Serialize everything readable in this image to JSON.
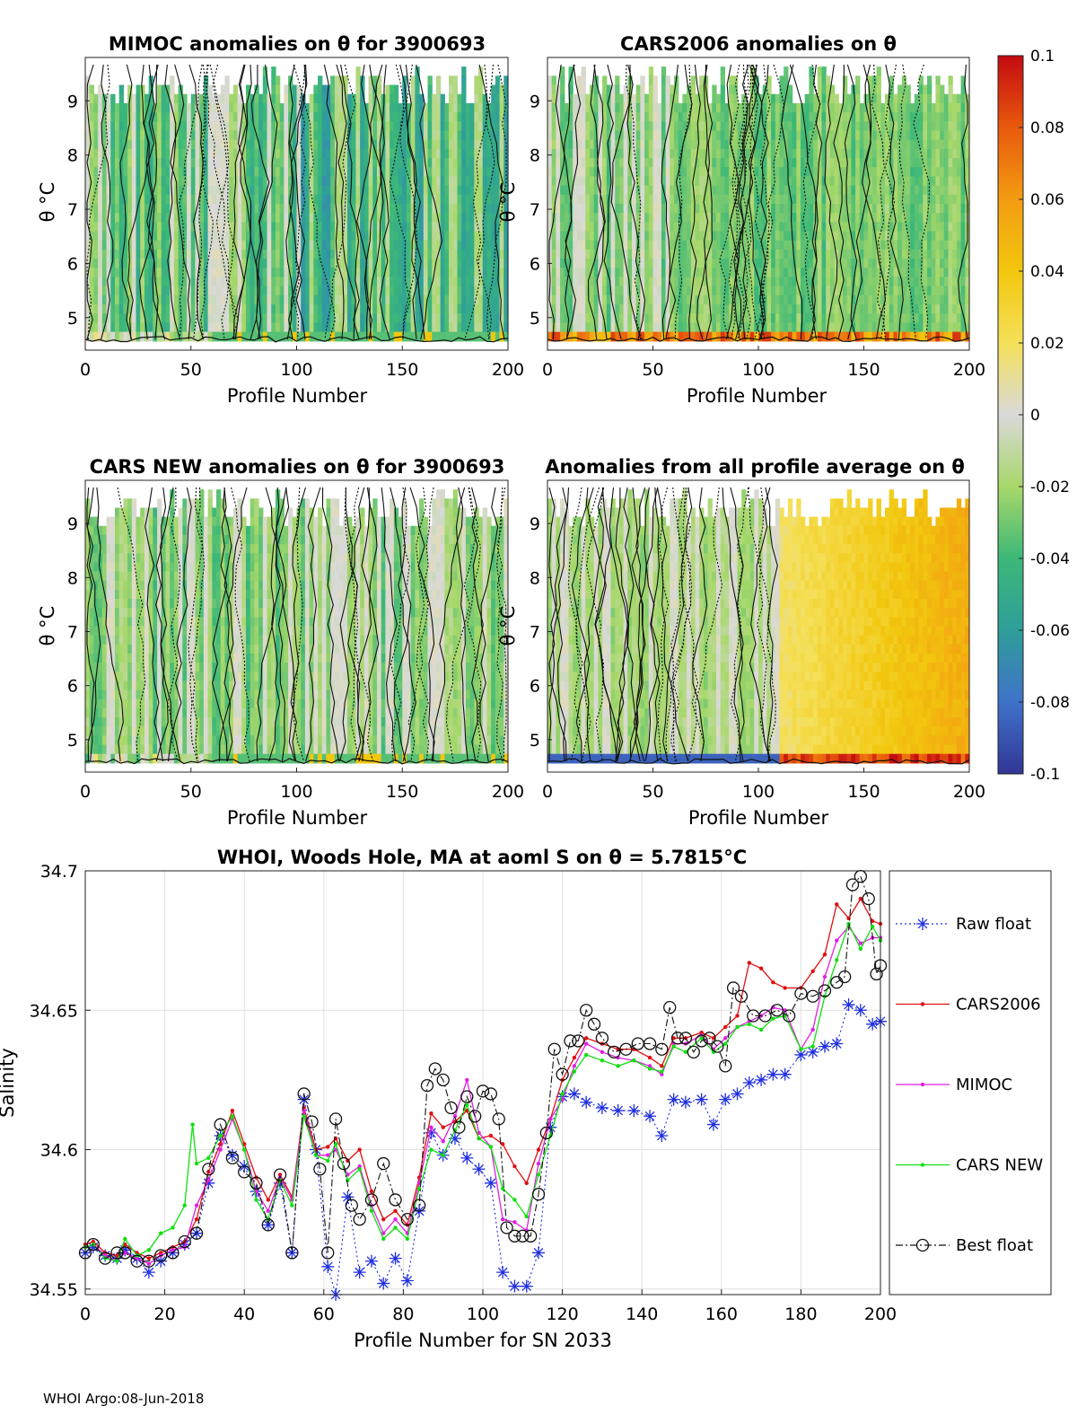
{
  "footer": "WHOI Argo:08-Jun-2018",
  "colorbar": {
    "ticks": [
      "0.1",
      "0.08",
      "0.06",
      "0.04",
      "0.02",
      "0",
      "-0.02",
      "-0.04",
      "-0.06",
      "-0.08",
      "-0.1"
    ],
    "range": [
      -0.1,
      0.1
    ],
    "colormap": [
      "#313695",
      "#3f72c9",
      "#2f9e9a",
      "#3cb878",
      "#a8d86a",
      "#d9d9d9",
      "#f5e05a",
      "#f2c70e",
      "#f39c12",
      "#e8590c",
      "#c40a12"
    ]
  },
  "heatmaps": [
    {
      "title": "MIMOC anomalies on θ  for 3900693",
      "xlabel": "Profile Number",
      "ylabel": "θ °C",
      "xticks": [
        "0",
        "50",
        "100",
        "150",
        "200"
      ],
      "yticks": [
        "9",
        "8",
        "7",
        "6",
        "5"
      ],
      "xlim": [
        0,
        200
      ],
      "ylim": [
        4.4,
        9.8
      ],
      "pattern": "mimoc"
    },
    {
      "title": "CARS2006 anomalies on θ",
      "xlabel": "Profile Number",
      "ylabel": "θ °C",
      "xticks": [
        "0",
        "50",
        "100",
        "150",
        "200"
      ],
      "yticks": [
        "9",
        "8",
        "7",
        "6",
        "5"
      ],
      "xlim": [
        0,
        200
      ],
      "ylim": [
        4.4,
        9.8
      ],
      "pattern": "cars2006"
    },
    {
      "title": "CARS NEW anomalies on θ for 3900693",
      "xlabel": "Profile Number",
      "ylabel": "θ °C",
      "xticks": [
        "0",
        "50",
        "100",
        "150",
        "200"
      ],
      "yticks": [
        "9",
        "8",
        "7",
        "6",
        "5"
      ],
      "xlim": [
        0,
        200
      ],
      "ylim": [
        4.4,
        9.8
      ],
      "pattern": "carsnew"
    },
    {
      "title": "Anomalies from all profile average on θ",
      "xlabel": "Profile Number",
      "ylabel": "θ °C",
      "xticks": [
        "0",
        "50",
        "100",
        "150",
        "200"
      ],
      "yticks": [
        "9",
        "8",
        "7",
        "6",
        "5"
      ],
      "xlim": [
        0,
        200
      ],
      "ylim": [
        4.4,
        9.8
      ],
      "pattern": "avg"
    }
  ],
  "chart_data": {
    "type": "line",
    "title": "WHOI, Woods Hole, MA at aoml S on θ = 5.7815°C",
    "xlabel": "Profile Number for SN 2033",
    "ylabel": "Salinity",
    "xlim": [
      0,
      200
    ],
    "ylim": [
      34.548,
      34.7
    ],
    "grid": true,
    "legend_position": "right-outside",
    "xticks": [
      "0",
      "20",
      "40",
      "60",
      "80",
      "100",
      "120",
      "140",
      "160",
      "180",
      "200"
    ],
    "yticks": [
      "34.7",
      "34.65",
      "34.6",
      "34.55"
    ],
    "series": [
      {
        "name": "Raw float",
        "color": "#1f2fe0",
        "marker": "star",
        "style": "dotted",
        "x": [
          0,
          2,
          5,
          8,
          10,
          13,
          16,
          19,
          22,
          25,
          28,
          31,
          34,
          37,
          40,
          43,
          46,
          49,
          52,
          55,
          58,
          61,
          63,
          66,
          69,
          72,
          75,
          78,
          81,
          84,
          87,
          90,
          93,
          96,
          99,
          102,
          105,
          108,
          111,
          114,
          117,
          120,
          123,
          126,
          130,
          134,
          138,
          142,
          145,
          148,
          151,
          155,
          158,
          161,
          164,
          167,
          170,
          173,
          176,
          180,
          183,
          186,
          189,
          192,
          195,
          198,
          200
        ],
        "values": [
          34.563,
          34.565,
          34.562,
          34.561,
          34.564,
          34.561,
          34.556,
          34.56,
          34.563,
          34.566,
          34.57,
          34.588,
          34.605,
          34.598,
          34.594,
          34.585,
          34.573,
          34.588,
          34.563,
          34.618,
          34.6,
          34.558,
          34.548,
          34.583,
          34.556,
          34.56,
          34.552,
          34.561,
          34.553,
          34.578,
          34.606,
          34.598,
          34.604,
          34.597,
          34.593,
          34.588,
          34.556,
          34.551,
          34.551,
          34.563,
          34.608,
          34.619,
          34.62,
          34.617,
          34.615,
          34.614,
          34.614,
          34.612,
          34.605,
          34.618,
          34.617,
          34.618,
          34.609,
          34.618,
          34.62,
          34.624,
          34.625,
          34.627,
          34.627,
          34.634,
          34.635,
          34.637,
          34.638,
          34.652,
          34.65,
          34.645,
          34.646
        ]
      },
      {
        "name": "CARS2006",
        "color": "#e01010",
        "marker": "dot",
        "style": "solid",
        "x": [
          0,
          2,
          5,
          8,
          10,
          13,
          16,
          19,
          22,
          25,
          28,
          31,
          34,
          37,
          40,
          43,
          46,
          49,
          52,
          55,
          58,
          61,
          63,
          66,
          69,
          72,
          75,
          78,
          81,
          84,
          87,
          90,
          93,
          96,
          99,
          102,
          105,
          108,
          111,
          114,
          117,
          120,
          123,
          126,
          130,
          134,
          138,
          142,
          145,
          148,
          151,
          155,
          158,
          161,
          164,
          167,
          170,
          173,
          176,
          180,
          183,
          186,
          189,
          192,
          195,
          198,
          200
        ],
        "values": [
          34.566,
          34.567,
          34.563,
          34.562,
          34.566,
          34.563,
          34.561,
          34.563,
          34.565,
          34.567,
          34.575,
          34.592,
          34.602,
          34.614,
          34.602,
          34.59,
          34.582,
          34.591,
          34.583,
          34.615,
          34.6,
          34.601,
          34.604,
          34.596,
          34.6,
          34.585,
          34.575,
          34.578,
          34.573,
          34.59,
          34.613,
          34.608,
          34.61,
          34.614,
          34.604,
          34.605,
          34.602,
          34.594,
          34.588,
          34.6,
          34.611,
          34.625,
          34.633,
          34.64,
          34.638,
          34.636,
          34.636,
          34.633,
          34.63,
          34.64,
          34.64,
          34.642,
          34.64,
          34.644,
          34.648,
          34.667,
          34.665,
          34.66,
          34.658,
          34.658,
          34.664,
          34.67,
          34.688,
          34.683,
          34.69,
          34.682,
          34.681
        ]
      },
      {
        "name": "MIMOC",
        "color": "#e020e0",
        "marker": "dot",
        "style": "solid",
        "x": [
          0,
          2,
          5,
          8,
          10,
          13,
          16,
          19,
          22,
          25,
          28,
          31,
          34,
          37,
          40,
          43,
          46,
          49,
          52,
          55,
          58,
          61,
          63,
          66,
          69,
          72,
          75,
          78,
          81,
          84,
          87,
          90,
          93,
          96,
          99,
          102,
          105,
          108,
          111,
          114,
          117,
          120,
          123,
          126,
          130,
          134,
          138,
          142,
          145,
          148,
          151,
          155,
          158,
          161,
          164,
          167,
          170,
          173,
          176,
          180,
          183,
          186,
          189,
          192,
          195,
          198,
          200
        ],
        "values": [
          34.565,
          34.566,
          34.562,
          34.56,
          34.563,
          34.561,
          34.559,
          34.562,
          34.564,
          34.565,
          34.58,
          34.589,
          34.6,
          34.611,
          34.6,
          34.585,
          34.578,
          34.59,
          34.582,
          34.614,
          34.598,
          34.598,
          34.6,
          34.591,
          34.594,
          34.58,
          34.57,
          34.575,
          34.57,
          34.588,
          34.608,
          34.603,
          34.612,
          34.625,
          34.606,
          34.601,
          34.575,
          34.574,
          34.571,
          34.595,
          34.611,
          34.618,
          34.63,
          34.638,
          34.635,
          34.633,
          34.632,
          34.63,
          34.627,
          34.638,
          34.638,
          34.641,
          34.636,
          34.64,
          34.644,
          34.646,
          34.648,
          34.651,
          34.65,
          34.636,
          34.643,
          34.662,
          34.675,
          34.68,
          34.674,
          34.676,
          34.676
        ]
      },
      {
        "name": "CARS NEW",
        "color": "#10e010",
        "marker": "dot",
        "style": "solid",
        "x": [
          0,
          2,
          5,
          8,
          10,
          13,
          16,
          19,
          22,
          25,
          27,
          28,
          31,
          34,
          37,
          40,
          43,
          46,
          49,
          52,
          55,
          58,
          61,
          63,
          66,
          69,
          72,
          75,
          78,
          81,
          84,
          87,
          90,
          93,
          96,
          99,
          102,
          105,
          108,
          111,
          114,
          117,
          120,
          123,
          126,
          130,
          134,
          138,
          142,
          145,
          148,
          151,
          155,
          158,
          161,
          164,
          167,
          170,
          173,
          176,
          180,
          183,
          186,
          189,
          192,
          195,
          198,
          200
        ],
        "values": [
          34.565,
          34.566,
          34.561,
          34.56,
          34.568,
          34.562,
          34.564,
          34.57,
          34.572,
          34.58,
          34.609,
          34.595,
          34.597,
          34.605,
          34.612,
          34.6,
          34.582,
          34.575,
          34.589,
          34.58,
          34.612,
          34.598,
          34.596,
          34.602,
          34.589,
          34.593,
          34.578,
          34.568,
          34.572,
          34.568,
          34.586,
          34.6,
          34.598,
          34.607,
          34.616,
          34.604,
          34.601,
          34.586,
          34.582,
          34.576,
          34.591,
          34.605,
          34.62,
          34.628,
          34.634,
          34.632,
          34.63,
          34.632,
          34.629,
          34.628,
          34.637,
          34.635,
          34.64,
          34.635,
          34.638,
          34.644,
          34.645,
          34.643,
          34.647,
          34.648,
          34.636,
          34.637,
          34.655,
          34.668,
          34.681,
          34.672,
          34.68,
          34.675
        ]
      },
      {
        "name": "Best float",
        "color": "#111111",
        "marker": "circle",
        "style": "dashdot",
        "x": [
          0,
          2,
          5,
          8,
          10,
          13,
          16,
          19,
          22,
          25,
          28,
          31,
          34,
          37,
          40,
          43,
          46,
          49,
          52,
          55,
          57,
          59,
          61,
          63,
          65,
          67,
          69,
          72,
          75,
          78,
          81,
          84,
          86,
          88,
          90,
          92,
          94,
          96,
          98,
          100,
          102,
          104,
          106,
          108,
          110,
          112,
          114,
          116,
          118,
          120,
          122,
          124,
          126,
          128,
          130,
          133,
          136,
          139,
          142,
          145,
          147,
          149,
          151,
          153,
          155,
          157,
          159,
          161,
          163,
          165,
          168,
          171,
          174,
          177,
          180,
          183,
          186,
          189,
          191,
          193,
          195,
          197,
          199,
          200
        ],
        "values": [
          34.563,
          34.566,
          34.561,
          34.563,
          34.563,
          34.56,
          34.56,
          34.562,
          34.563,
          34.567,
          34.57,
          34.593,
          34.609,
          34.597,
          34.592,
          34.588,
          34.573,
          34.591,
          34.563,
          34.62,
          34.61,
          34.593,
          34.563,
          34.611,
          34.595,
          34.58,
          34.575,
          34.582,
          34.595,
          34.582,
          34.575,
          34.58,
          34.623,
          34.629,
          34.625,
          34.615,
          34.608,
          34.619,
          34.612,
          34.621,
          34.62,
          34.611,
          34.572,
          34.569,
          34.569,
          34.569,
          34.584,
          34.606,
          34.636,
          34.627,
          34.639,
          34.639,
          34.65,
          34.645,
          34.64,
          34.635,
          34.636,
          34.638,
          34.638,
          34.636,
          34.651,
          34.64,
          34.64,
          34.635,
          34.639,
          34.64,
          34.637,
          34.63,
          34.658,
          34.655,
          34.648,
          34.648,
          34.65,
          34.648,
          34.656,
          34.655,
          34.657,
          34.66,
          34.662,
          34.695,
          34.698,
          34.69,
          34.663,
          34.666
        ]
      }
    ]
  }
}
